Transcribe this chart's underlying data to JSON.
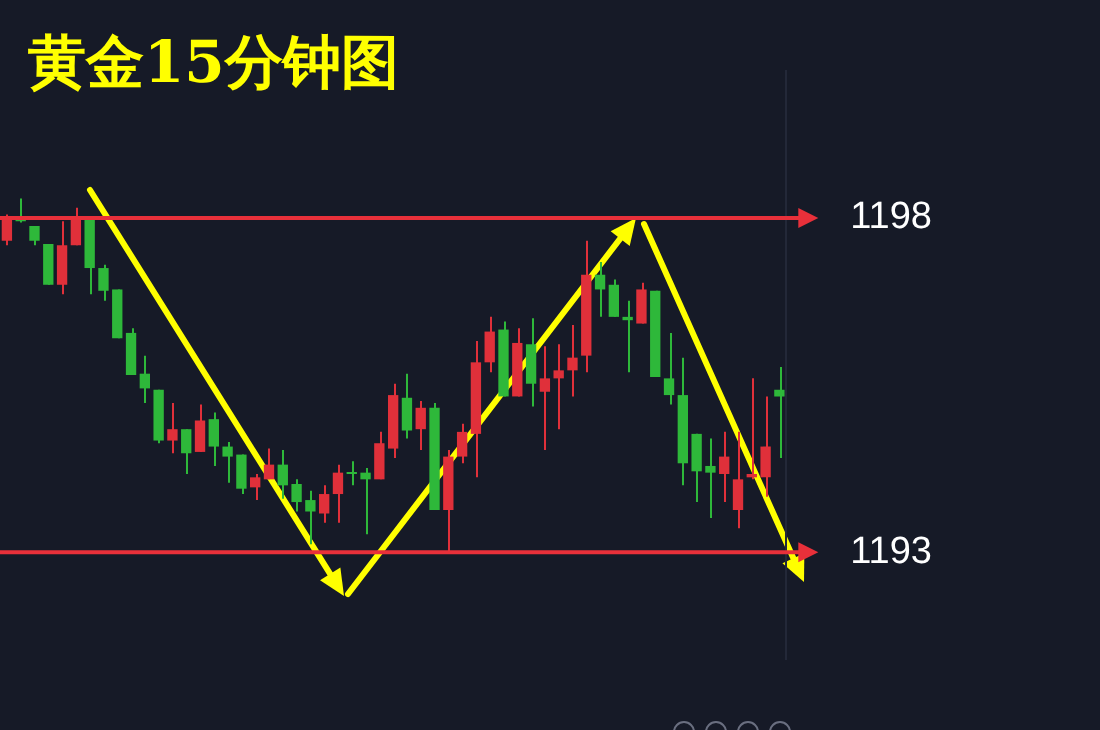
{
  "chart_data": {
    "type": "candlestick",
    "title": "黄金15分钟图",
    "categories": [
      null,
      null,
      null,
      null,
      null,
      null,
      null,
      null,
      null,
      null,
      null,
      null,
      null,
      null,
      null,
      null,
      null,
      null,
      null,
      null,
      null,
      null,
      null,
      null,
      null,
      null,
      null,
      null,
      null,
      null,
      null,
      null,
      null,
      null,
      null,
      null,
      null,
      null,
      null,
      null,
      null,
      null,
      null,
      null,
      null,
      null,
      null,
      null,
      null,
      null,
      null,
      null,
      null,
      null,
      null,
      null,
      null
    ],
    "ohlc": [
      [
        1197.66,
        1198.05,
        1197.59,
        1197.98
      ],
      [
        1197.98,
        1198.29,
        1197.93,
        1197.95
      ],
      [
        1197.88,
        1197.88,
        1197.59,
        1197.66
      ],
      [
        1197.61,
        1197.61,
        1197.0,
        1197.0
      ],
      [
        1197.0,
        1197.95,
        1196.86,
        1197.59
      ],
      [
        1197.59,
        1198.15,
        1197.59,
        1198.02
      ],
      [
        1198.02,
        1198.02,
        1196.86,
        1197.25
      ],
      [
        1197.25,
        1197.3,
        1196.76,
        1196.91
      ],
      [
        1196.93,
        1196.93,
        1196.2,
        1196.2
      ],
      [
        1196.28,
        1196.35,
        1195.65,
        1195.65
      ],
      [
        1195.67,
        1195.94,
        1195.23,
        1195.45
      ],
      [
        1195.43,
        1195.43,
        1194.63,
        1194.67
      ],
      [
        1194.67,
        1195.23,
        1194.48,
        1194.84
      ],
      [
        1194.84,
        1194.84,
        1194.17,
        1194.48
      ],
      [
        1194.5,
        1195.21,
        1194.5,
        1194.97
      ],
      [
        1194.99,
        1195.09,
        1194.29,
        1194.58
      ],
      [
        1194.58,
        1194.65,
        1194.04,
        1194.43
      ],
      [
        1194.46,
        1194.46,
        1193.87,
        1193.95
      ],
      [
        1193.97,
        1194.17,
        1193.78,
        1194.12
      ],
      [
        1194.09,
        1194.55,
        1194.09,
        1194.31
      ],
      [
        1194.31,
        1194.53,
        1193.8,
        1194.0
      ],
      [
        1194.02,
        1194.09,
        1193.61,
        1193.75
      ],
      [
        1193.78,
        1193.92,
        1193.12,
        1193.61
      ],
      [
        1193.58,
        1194.0,
        1193.44,
        1193.87
      ],
      [
        1193.87,
        1194.31,
        1193.44,
        1194.19
      ],
      [
        1194.19,
        1194.36,
        1194.0,
        1194.17
      ],
      [
        1194.19,
        1194.26,
        1193.27,
        1194.09
      ],
      [
        1194.09,
        1194.8,
        1194.09,
        1194.63
      ],
      [
        1194.55,
        1195.52,
        1194.41,
        1195.35
      ],
      [
        1195.31,
        1195.67,
        1194.7,
        1194.82
      ],
      [
        1194.84,
        1195.26,
        1194.53,
        1195.16
      ],
      [
        1195.16,
        1195.23,
        1193.63,
        1193.63
      ],
      [
        1193.63,
        1194.53,
        1193.02,
        1194.43
      ],
      [
        1194.43,
        1194.92,
        1194.33,
        1194.8
      ],
      [
        1194.77,
        1196.16,
        1194.12,
        1195.84
      ],
      [
        1195.84,
        1196.52,
        1195.69,
        1196.3
      ],
      [
        1196.33,
        1196.45,
        1195.33,
        1195.33
      ],
      [
        1195.33,
        1196.35,
        1195.33,
        1196.13
      ],
      [
        1196.11,
        1196.5,
        1195.18,
        1195.52
      ],
      [
        1195.4,
        1196.08,
        1194.53,
        1195.6
      ],
      [
        1195.6,
        1196.11,
        1194.84,
        1195.72
      ],
      [
        1195.72,
        1196.4,
        1195.33,
        1195.91
      ],
      [
        1195.94,
        1197.66,
        1195.69,
        1197.15
      ],
      [
        1197.15,
        1197.34,
        1196.52,
        1196.93
      ],
      [
        1197.0,
        1197.08,
        1196.52,
        1196.52
      ],
      [
        1196.52,
        1196.76,
        1195.69,
        1196.47
      ],
      [
        1196.42,
        1197.03,
        1196.42,
        1196.93
      ],
      [
        1196.91,
        1196.91,
        1195.62,
        1195.62
      ],
      [
        1195.6,
        1196.28,
        1195.21,
        1195.35
      ],
      [
        1195.35,
        1195.91,
        1194.0,
        1194.33
      ],
      [
        1194.77,
        1194.77,
        1193.75,
        1194.21
      ],
      [
        1194.29,
        1194.7,
        1193.51,
        1194.19
      ],
      [
        1194.17,
        1194.8,
        1193.75,
        1194.43
      ],
      [
        1193.63,
        1194.8,
        1193.36,
        1194.09
      ],
      [
        1194.12,
        1195.6,
        1194.09,
        1194.17
      ],
      [
        1194.12,
        1195.33,
        1193.83,
        1194.58
      ],
      [
        1195.43,
        1195.77,
        1194.41,
        1195.33
      ]
    ],
    "ylim": [
      1191.4,
      1200.2
    ],
    "yticks": [
      1193,
      1198
    ],
    "tick_labels": "y",
    "ref_lines": [
      {
        "axis": "y",
        "value": 1198,
        "color": "#e8303a"
      },
      {
        "axis": "y",
        "value": 1193,
        "color": "#e8303a"
      }
    ]
  }
}
